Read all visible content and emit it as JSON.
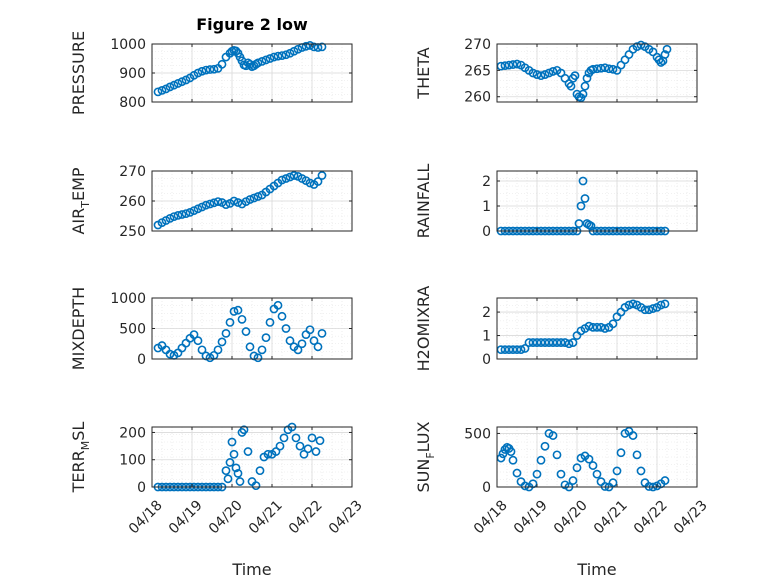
{
  "figure": {
    "title": "Figure 2 low"
  },
  "colors": {
    "marker": "#0072BD",
    "axes": "#262626",
    "grid": "#d9d9d9",
    "plot_bg": "#ffffff"
  },
  "chart_data": [
    {
      "type": "scatter",
      "id": "pressure",
      "ylabel": "PRESSURE",
      "ylabel_sub": "",
      "title": "Figure 2 low",
      "xlim": [
        0,
        5
      ],
      "ylim": [
        800,
        1000
      ],
      "yticks": [
        800,
        900,
        1000
      ],
      "ytick_labels": [
        "800",
        "900",
        "1000"
      ],
      "xticks": [],
      "xtick_labels": [],
      "xlabel": "",
      "x": [
        0.15,
        0.25,
        0.35,
        0.45,
        0.55,
        0.65,
        0.75,
        0.85,
        0.95,
        1.05,
        1.15,
        1.25,
        1.35,
        1.45,
        1.55,
        1.65,
        1.75,
        1.85,
        1.95,
        2.0,
        2.05,
        2.1,
        2.15,
        2.2,
        2.25,
        2.3,
        2.35,
        2.4,
        2.45,
        2.5,
        2.55,
        2.6,
        2.65,
        2.75,
        2.85,
        2.95,
        3.05,
        3.15,
        3.25,
        3.35,
        3.45,
        3.55,
        3.65,
        3.75,
        3.85,
        3.95,
        4.05,
        4.15,
        4.25
      ],
      "y": [
        835,
        840,
        845,
        852,
        858,
        864,
        870,
        876,
        883,
        892,
        900,
        906,
        910,
        912,
        913,
        916,
        930,
        955,
        968,
        975,
        978,
        976,
        968,
        955,
        942,
        928,
        925,
        935,
        930,
        922,
        925,
        930,
        935,
        940,
        945,
        950,
        955,
        958,
        960,
        963,
        968,
        975,
        982,
        988,
        992,
        995,
        990,
        988,
        990
      ]
    },
    {
      "type": "scatter",
      "id": "theta",
      "ylabel": "THETA",
      "ylabel_sub": "",
      "xlim": [
        0,
        5
      ],
      "ylim": [
        259,
        270
      ],
      "yticks": [
        260,
        265,
        270
      ],
      "ytick_labels": [
        "260",
        "265",
        "270"
      ],
      "xticks": [],
      "xtick_labels": [],
      "xlabel": "",
      "x": [
        0.1,
        0.2,
        0.3,
        0.4,
        0.5,
        0.6,
        0.7,
        0.8,
        0.9,
        1.0,
        1.1,
        1.2,
        1.3,
        1.4,
        1.5,
        1.6,
        1.7,
        1.8,
        1.85,
        1.9,
        1.95,
        2.0,
        2.05,
        2.1,
        2.15,
        2.2,
        2.25,
        2.3,
        2.35,
        2.4,
        2.5,
        2.6,
        2.7,
        2.8,
        2.9,
        3.0,
        3.1,
        3.2,
        3.3,
        3.4,
        3.5,
        3.6,
        3.7,
        3.8,
        3.9,
        4.0,
        4.05,
        4.1,
        4.15,
        4.2,
        4.25
      ],
      "y": [
        265.8,
        265.9,
        266.0,
        266.1,
        266.2,
        266.0,
        265.5,
        265.0,
        264.5,
        264.2,
        264.0,
        264.2,
        264.5,
        264.8,
        265.0,
        264.5,
        263.5,
        262.5,
        262.0,
        263.5,
        264.0,
        260.5,
        260.0,
        259.8,
        260.5,
        262.0,
        263.5,
        264.5,
        265.0,
        265.2,
        265.3,
        265.4,
        265.5,
        265.3,
        265.2,
        265.0,
        266.0,
        267.0,
        268.0,
        269.0,
        269.5,
        269.8,
        269.5,
        269.0,
        268.5,
        267.5,
        267.0,
        266.5,
        266.8,
        268.0,
        269.0
      ]
    },
    {
      "type": "scatter",
      "id": "air_temp",
      "ylabel": "AIR",
      "ylabel_sub": "T",
      "ylabel_rest": "EMP",
      "xlim": [
        0,
        5
      ],
      "ylim": [
        250,
        270
      ],
      "yticks": [
        250,
        260,
        270
      ],
      "ytick_labels": [
        "250",
        "260",
        "270"
      ],
      "xticks": [],
      "xtick_labels": [],
      "xlabel": "",
      "x": [
        0.15,
        0.25,
        0.35,
        0.45,
        0.55,
        0.65,
        0.75,
        0.85,
        0.95,
        1.05,
        1.15,
        1.25,
        1.35,
        1.45,
        1.55,
        1.65,
        1.75,
        1.85,
        1.95,
        2.05,
        2.15,
        2.25,
        2.35,
        2.45,
        2.55,
        2.65,
        2.75,
        2.85,
        2.95,
        3.05,
        3.15,
        3.25,
        3.35,
        3.45,
        3.55,
        3.65,
        3.75,
        3.85,
        3.95,
        4.05,
        4.15,
        4.25
      ],
      "y": [
        252,
        252.8,
        253.5,
        254.2,
        254.8,
        255.2,
        255.5,
        255.8,
        256.2,
        256.8,
        257.4,
        258.0,
        258.6,
        259.0,
        259.4,
        259.8,
        259.5,
        258.8,
        259.2,
        260.0,
        259.5,
        259.0,
        259.8,
        260.5,
        261.0,
        261.5,
        262.0,
        263.0,
        264.0,
        265.0,
        266.0,
        267.0,
        267.5,
        268.0,
        268.5,
        268.2,
        267.5,
        266.8,
        266.0,
        265.5,
        266.5,
        268.5
      ]
    },
    {
      "type": "scatter",
      "id": "rainfall",
      "ylabel": "RAINFALL",
      "ylabel_sub": "",
      "xlim": [
        0,
        5
      ],
      "ylim": [
        0,
        2.4
      ],
      "yticks": [
        0,
        1,
        2
      ],
      "ytick_labels": [
        "0",
        "1",
        "2"
      ],
      "xticks": [],
      "xtick_labels": [],
      "xlabel": "",
      "x": [
        0.1,
        0.2,
        0.3,
        0.4,
        0.5,
        0.6,
        0.7,
        0.8,
        0.9,
        1.0,
        1.1,
        1.2,
        1.3,
        1.4,
        1.5,
        1.6,
        1.7,
        1.8,
        1.9,
        2.0,
        2.05,
        2.1,
        2.15,
        2.2,
        2.25,
        2.3,
        2.35,
        2.4,
        2.5,
        2.6,
        2.7,
        2.8,
        2.9,
        3.0,
        3.1,
        3.2,
        3.3,
        3.4,
        3.5,
        3.6,
        3.7,
        3.8,
        3.9,
        4.0,
        4.1,
        4.2
      ],
      "y": [
        0,
        0,
        0,
        0,
        0,
        0,
        0,
        0,
        0,
        0,
        0,
        0,
        0,
        0,
        0,
        0,
        0,
        0,
        0,
        0,
        0.3,
        1.0,
        2.0,
        1.3,
        0.3,
        0.25,
        0.2,
        0,
        0,
        0,
        0,
        0,
        0,
        0,
        0,
        0,
        0,
        0,
        0,
        0,
        0,
        0,
        0,
        0,
        0,
        0
      ]
    },
    {
      "type": "scatter",
      "id": "mixdepth",
      "ylabel": "MIXDEPTH",
      "ylabel_sub": "",
      "xlim": [
        0,
        5
      ],
      "ylim": [
        0,
        1000
      ],
      "yticks": [
        0,
        500,
        1000
      ],
      "ytick_labels": [
        "0",
        "500",
        "1000"
      ],
      "xticks": [],
      "xtick_labels": [],
      "xlabel": "",
      "x": [
        0.15,
        0.25,
        0.35,
        0.45,
        0.55,
        0.65,
        0.75,
        0.85,
        0.95,
        1.05,
        1.15,
        1.25,
        1.35,
        1.45,
        1.55,
        1.65,
        1.75,
        1.85,
        1.95,
        2.05,
        2.15,
        2.25,
        2.35,
        2.45,
        2.55,
        2.65,
        2.75,
        2.85,
        2.95,
        3.05,
        3.15,
        3.25,
        3.35,
        3.45,
        3.55,
        3.65,
        3.75,
        3.85,
        3.95,
        4.05,
        4.15,
        4.25
      ],
      "y": [
        180,
        220,
        150,
        80,
        60,
        100,
        180,
        260,
        340,
        400,
        300,
        150,
        50,
        20,
        60,
        150,
        280,
        420,
        600,
        780,
        800,
        650,
        450,
        200,
        50,
        20,
        150,
        350,
        600,
        820,
        880,
        700,
        500,
        300,
        200,
        150,
        250,
        400,
        480,
        300,
        200,
        420
      ]
    },
    {
      "type": "scatter",
      "id": "h2omixra",
      "ylabel": "H2OMIXRA",
      "ylabel_sub": "",
      "xlim": [
        0,
        5
      ],
      "ylim": [
        0,
        2.6
      ],
      "yticks": [
        0,
        1,
        2
      ],
      "ytick_labels": [
        "0",
        "1",
        "2"
      ],
      "xticks": [],
      "xtick_labels": [],
      "xlabel": "",
      "x": [
        0.1,
        0.2,
        0.3,
        0.4,
        0.5,
        0.6,
        0.7,
        0.8,
        0.9,
        1.0,
        1.1,
        1.2,
        1.3,
        1.4,
        1.5,
        1.6,
        1.7,
        1.8,
        1.9,
        2.0,
        2.1,
        2.2,
        2.3,
        2.4,
        2.5,
        2.6,
        2.7,
        2.8,
        2.9,
        3.0,
        3.1,
        3.2,
        3.3,
        3.4,
        3.5,
        3.6,
        3.7,
        3.8,
        3.9,
        4.0,
        4.1,
        4.2
      ],
      "y": [
        0.4,
        0.4,
        0.4,
        0.4,
        0.4,
        0.4,
        0.45,
        0.7,
        0.7,
        0.7,
        0.7,
        0.7,
        0.7,
        0.7,
        0.7,
        0.7,
        0.7,
        0.65,
        0.7,
        1.0,
        1.2,
        1.3,
        1.4,
        1.35,
        1.35,
        1.35,
        1.3,
        1.35,
        1.5,
        1.8,
        2.0,
        2.2,
        2.3,
        2.35,
        2.3,
        2.2,
        2.1,
        2.1,
        2.15,
        2.2,
        2.3,
        2.35
      ]
    },
    {
      "type": "scatter",
      "id": "terr_msl",
      "ylabel": "TERR",
      "ylabel_sub": "M",
      "ylabel_rest": "SL",
      "xlim": [
        0,
        5
      ],
      "ylim": [
        0,
        220
      ],
      "yticks": [
        0,
        100,
        200
      ],
      "ytick_labels": [
        "0",
        "100",
        "200"
      ],
      "xticks": [
        0,
        1,
        2,
        3,
        4,
        5
      ],
      "xtick_labels": [
        "04/18",
        "04/19",
        "04/20",
        "04/21",
        "04/22",
        "04/23"
      ],
      "xlabel": "Time",
      "x": [
        0.15,
        0.25,
        0.35,
        0.45,
        0.55,
        0.65,
        0.75,
        0.85,
        0.95,
        1.05,
        1.15,
        1.25,
        1.35,
        1.45,
        1.55,
        1.65,
        1.75,
        1.85,
        1.9,
        1.95,
        2.0,
        2.05,
        2.1,
        2.15,
        2.2,
        2.25,
        2.3,
        2.4,
        2.5,
        2.6,
        2.7,
        2.8,
        2.9,
        3.0,
        3.1,
        3.2,
        3.3,
        3.4,
        3.5,
        3.6,
        3.7,
        3.8,
        3.9,
        4.0,
        4.1,
        4.2
      ],
      "y": [
        0,
        0,
        0,
        0,
        0,
        0,
        0,
        0,
        0,
        0,
        0,
        0,
        0,
        0,
        0,
        0,
        0,
        60,
        30,
        90,
        165,
        120,
        70,
        50,
        20,
        200,
        210,
        130,
        20,
        5,
        60,
        110,
        120,
        120,
        130,
        150,
        180,
        210,
        220,
        180,
        150,
        120,
        140,
        180,
        130,
        170
      ]
    },
    {
      "type": "scatter",
      "id": "sun_flux",
      "ylabel": "SUN",
      "ylabel_sub": "F",
      "ylabel_rest": "LUX",
      "xlim": [
        0,
        5
      ],
      "ylim": [
        0,
        560
      ],
      "yticks": [
        0,
        500
      ],
      "ytick_labels": [
        "0",
        "500"
      ],
      "xticks": [
        0,
        1,
        2,
        3,
        4,
        5
      ],
      "xtick_labels": [
        "04/18",
        "04/19",
        "04/20",
        "04/21",
        "04/22",
        "04/23"
      ],
      "xlabel": "Time",
      "x": [
        0.1,
        0.15,
        0.2,
        0.25,
        0.3,
        0.35,
        0.4,
        0.5,
        0.6,
        0.7,
        0.8,
        0.9,
        1.0,
        1.1,
        1.2,
        1.3,
        1.4,
        1.5,
        1.6,
        1.7,
        1.8,
        1.9,
        2.0,
        2.1,
        2.2,
        2.3,
        2.4,
        2.5,
        2.6,
        2.7,
        2.8,
        2.9,
        3.0,
        3.1,
        3.2,
        3.3,
        3.4,
        3.5,
        3.6,
        3.7,
        3.8,
        3.9,
        4.0,
        4.1,
        4.2
      ],
      "y": [
        270,
        310,
        350,
        370,
        360,
        330,
        250,
        130,
        50,
        10,
        0,
        30,
        120,
        250,
        380,
        500,
        480,
        300,
        120,
        20,
        0,
        60,
        180,
        270,
        290,
        260,
        200,
        120,
        50,
        5,
        0,
        40,
        150,
        320,
        500,
        520,
        480,
        300,
        150,
        40,
        5,
        0,
        10,
        30,
        60
      ]
    }
  ]
}
